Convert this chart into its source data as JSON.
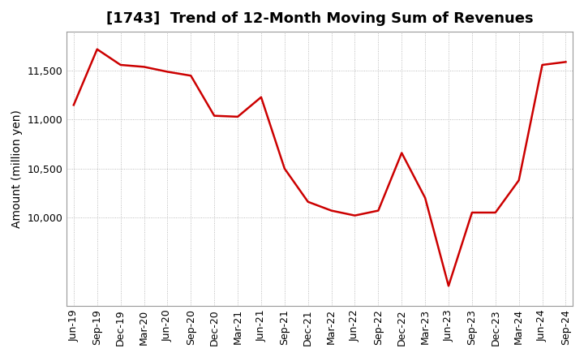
{
  "title": "[1743]  Trend of 12-Month Moving Sum of Revenues",
  "ylabel": "Amount (million yen)",
  "line_color": "#cc0000",
  "background_color": "#ffffff",
  "plot_background": "#ffffff",
  "grid_color": "#aaaaaa",
  "x_labels": [
    "Jun-19",
    "Sep-19",
    "Dec-19",
    "Mar-20",
    "Jun-20",
    "Sep-20",
    "Dec-20",
    "Mar-21",
    "Jun-21",
    "Sep-21",
    "Dec-21",
    "Mar-22",
    "Jun-22",
    "Sep-22",
    "Dec-22",
    "Mar-23",
    "Jun-23",
    "Sep-23",
    "Dec-23",
    "Mar-24",
    "Jun-24",
    "Sep-24"
  ],
  "y_values": [
    11150,
    11720,
    11560,
    11540,
    11490,
    11450,
    11040,
    11030,
    11230,
    10500,
    10160,
    10070,
    10020,
    10070,
    10660,
    10200,
    9300,
    10050,
    10050,
    10380,
    11560,
    11590
  ],
  "ylim_min": 9100,
  "ylim_max": 11900,
  "yticks": [
    10000,
    10500,
    11000,
    11500
  ],
  "title_fontsize": 13,
  "axis_fontsize": 10,
  "tick_fontsize": 9
}
